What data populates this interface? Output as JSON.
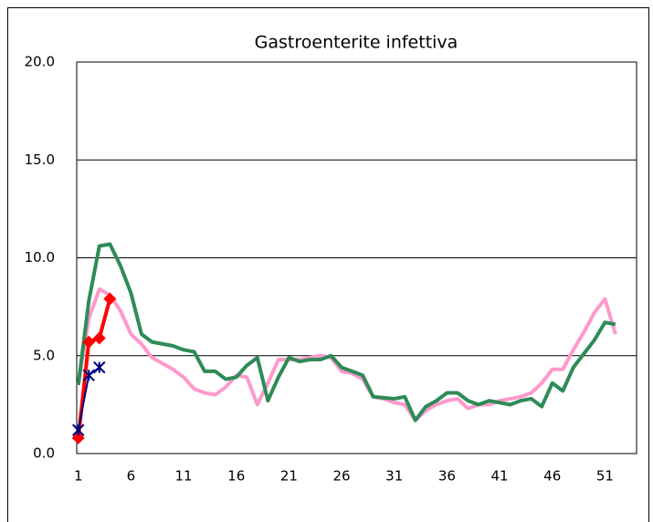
{
  "chart_data": {
    "type": "line",
    "title": "Gastroenterite infettiva",
    "xlim": [
      0.85,
      54
    ],
    "xticks": [
      1,
      6,
      11,
      16,
      21,
      26,
      31,
      36,
      41,
      46,
      51
    ],
    "ylim": [
      0,
      20
    ],
    "yticks": [
      {
        "value": 0,
        "label": "0.0"
      },
      {
        "value": 5,
        "label": "5.0"
      },
      {
        "value": 10,
        "label": "10.0"
      },
      {
        "value": 15,
        "label": "15.0"
      },
      {
        "value": 20,
        "label": "20.0"
      }
    ],
    "grid": true,
    "series": [
      {
        "color": "#ff99cc",
        "x": [
          1,
          2,
          3,
          4,
          5,
          6,
          7,
          8,
          9,
          10,
          11,
          12,
          13,
          14,
          15,
          16,
          17,
          18,
          19,
          20,
          21,
          22,
          23,
          24,
          25,
          26,
          27,
          28,
          29,
          30,
          31,
          32,
          33,
          34,
          35,
          36,
          37,
          38,
          39,
          40,
          41,
          42,
          43,
          44,
          45,
          46,
          47,
          48,
          49,
          50,
          51,
          52
        ],
        "values": [
          3.5,
          6.9,
          8.4,
          8.1,
          7.3,
          6.1,
          5.6,
          4.9,
          4.6,
          4.3,
          3.9,
          3.3,
          3.1,
          3.0,
          3.4,
          4.0,
          3.9,
          2.5,
          3.6,
          4.8,
          4.8,
          4.8,
          4.9,
          5.0,
          4.9,
          4.2,
          4.1,
          3.8,
          2.9,
          2.8,
          2.6,
          2.5,
          1.7,
          2.2,
          2.5,
          2.7,
          2.8,
          2.3,
          2.5,
          2.5,
          2.7,
          2.8,
          2.9,
          3.1,
          3.6,
          4.3,
          4.3,
          5.3,
          6.2,
          7.2,
          7.9,
          6.1
        ]
      },
      {
        "color": "#2e8b57",
        "x": [
          1,
          2,
          3,
          4,
          5,
          6,
          7,
          8,
          9,
          10,
          11,
          12,
          13,
          14,
          15,
          16,
          17,
          18,
          19,
          20,
          21,
          22,
          23,
          24,
          25,
          26,
          27,
          28,
          29,
          30,
          31,
          32,
          33,
          34,
          35,
          36,
          37,
          38,
          39,
          40,
          41,
          42,
          43,
          44,
          45,
          46,
          47,
          48,
          49,
          50,
          51,
          52
        ],
        "values": [
          3.5,
          7.8,
          10.6,
          10.7,
          9.6,
          8.2,
          6.1,
          5.7,
          5.6,
          5.5,
          5.3,
          5.2,
          4.2,
          4.2,
          3.8,
          3.9,
          4.5,
          4.9,
          2.7,
          3.9,
          4.9,
          4.7,
          4.8,
          4.8,
          5.0,
          4.4,
          4.2,
          4.0,
          2.9,
          2.85,
          2.8,
          2.9,
          1.7,
          2.4,
          2.7,
          3.1,
          3.1,
          2.7,
          2.5,
          2.7,
          2.6,
          2.5,
          2.7,
          2.8,
          2.4,
          3.6,
          3.2,
          4.4,
          5.1,
          5.8,
          6.7,
          6.6
        ]
      },
      {
        "color": "#ff0000",
        "marker": "diamond",
        "x": [
          1,
          2,
          3,
          4
        ],
        "values": [
          0.8,
          5.7,
          5.9,
          7.9
        ]
      },
      {
        "color": "#000080",
        "marker": "asterisk",
        "x": [
          1,
          2,
          3
        ],
        "values": [
          1.2,
          4.0,
          4.4
        ]
      }
    ]
  }
}
